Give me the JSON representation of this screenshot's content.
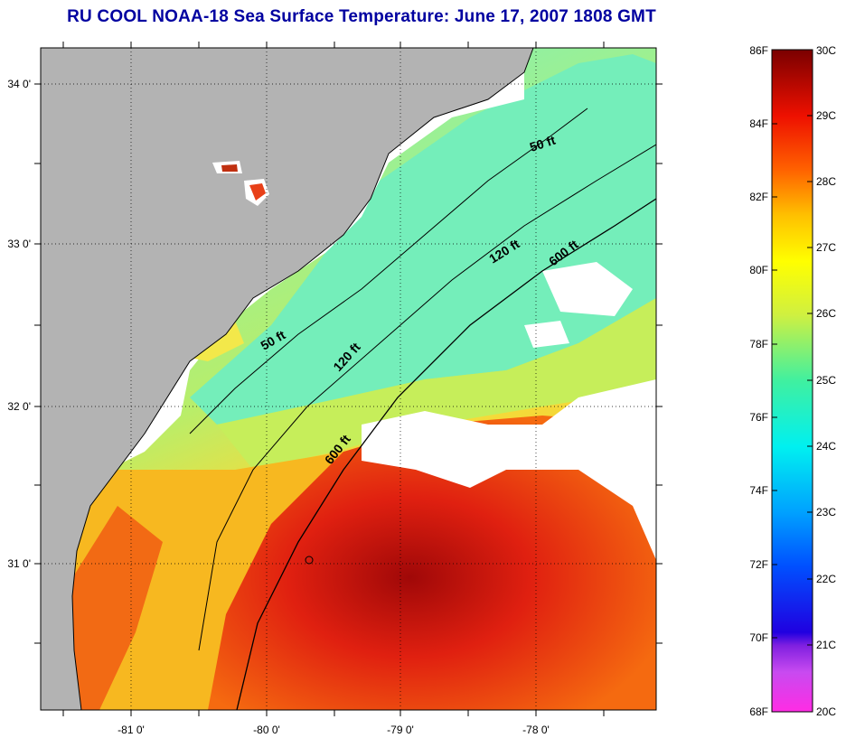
{
  "title": "RU COOL  NOAA-18  Sea Surface Temperature:  June 17, 2007 1808 GMT",
  "map": {
    "lon_ticks": [
      "-81 0'",
      "-80 0'",
      "-79 0'",
      "-78 0'"
    ],
    "lat_ticks": [
      "34 0'",
      "33 0'",
      "32 0'",
      "31 0'"
    ],
    "contour_labels": [
      "50 ft",
      "50 ft",
      "120 ft",
      "120 ft",
      "600 ft",
      "600 ft"
    ],
    "colors": {
      "land": "#b3b3b3",
      "no_data": "#ffffff",
      "cool_water": "#66f0b0",
      "mid_water": "#b8ee5a",
      "warm_water": "#f7c51c",
      "hot_water": "#f04010",
      "hottest_water": "#a80c0c"
    }
  },
  "colorbar": {
    "f_labels": [
      "86F",
      "84F",
      "82F",
      "80F",
      "78F",
      "76F",
      "74F",
      "72F",
      "70F",
      "68F"
    ],
    "c_labels": [
      "30C",
      "29C",
      "28C",
      "27C",
      "26C",
      "25C",
      "24C",
      "23C",
      "22C",
      "21C",
      "20C"
    ]
  }
}
